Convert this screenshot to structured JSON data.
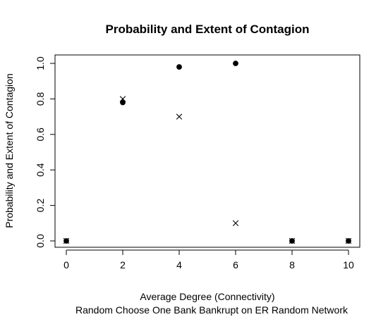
{
  "chart_data": {
    "type": "scatter",
    "title": "Probability and Extent of Contagion",
    "xlabel": "Average Degree (Connectivity)",
    "subtitle": "Random Choose One Bank Bankrupt on ER Random Network",
    "ylabel": "Probability and Extent of Contagion",
    "xlim": [
      0,
      10
    ],
    "ylim": [
      0,
      1
    ],
    "x_ticks": [
      0,
      2,
      4,
      6,
      8,
      10
    ],
    "y_ticks": [
      0,
      0.2,
      0.4,
      0.6,
      0.8,
      1
    ],
    "y_tick_labels": [
      "0.0",
      "0.2",
      "0.4",
      "0.6",
      "0.8",
      "1.0"
    ],
    "grid": false,
    "series": [
      {
        "marker": "filled-circle",
        "color": "#000000",
        "points": [
          {
            "x": 0,
            "y": 0
          },
          {
            "x": 2,
            "y": 0.78
          },
          {
            "x": 4,
            "y": 0.98
          },
          {
            "x": 6,
            "y": 1.0
          },
          {
            "x": 8,
            "y": 0
          },
          {
            "x": 10,
            "y": 0
          }
        ]
      },
      {
        "marker": "x-cross",
        "color": "#000000",
        "points": [
          {
            "x": 0,
            "y": 0
          },
          {
            "x": 2,
            "y": 0.8
          },
          {
            "x": 4,
            "y": 0.7
          },
          {
            "x": 6,
            "y": 0.1
          },
          {
            "x": 8,
            "y": 0
          },
          {
            "x": 10,
            "y": 0
          }
        ]
      }
    ]
  }
}
